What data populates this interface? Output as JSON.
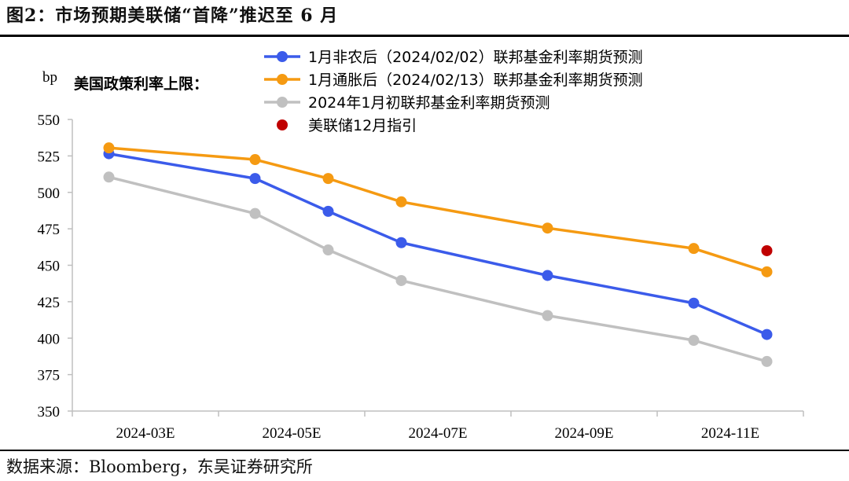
{
  "figure": {
    "title": "图2：市场预期美联储“首降”推迟至 6 月",
    "source": "数据来源：Bloomberg，东吴证券研究所"
  },
  "chart_data": {
    "type": "line",
    "ylabel": "bp",
    "annotation": "美国政策利率上限：",
    "ylim": [
      350,
      550
    ],
    "yticks": [
      350,
      375,
      400,
      425,
      450,
      475,
      500,
      525,
      550
    ],
    "x_tick_labels": [
      "2024-03E",
      "2024-05E",
      "2024-07E",
      "2024-09E",
      "2024-11E"
    ],
    "x": [
      "2024-03E",
      "2024-05E",
      "2024-06E",
      "2024-07E",
      "2024-09E",
      "2024-11E",
      "2024-12E"
    ],
    "legend_position": "top",
    "series": [
      {
        "name": "1月非农后（2024/02/02）联邦基金利率期货预测",
        "color": "#3b5bea",
        "values": [
          526.5,
          509.5,
          487,
          465.5,
          443,
          424,
          402.5
        ]
      },
      {
        "name": "1月通胀后（2024/02/13）联邦基金利率期货预测",
        "color": "#f59a12",
        "values": [
          530.5,
          522.5,
          509.5,
          493.5,
          475.5,
          461.5,
          445.5
        ]
      },
      {
        "name": "2024年1月初联邦基金利率期货预测",
        "color": "#c0c0c0",
        "values": [
          510.5,
          485.5,
          460.5,
          439.5,
          415.5,
          398.5,
          384
        ]
      }
    ],
    "points": [
      {
        "name": "美联储12月指引",
        "color": "#c00000",
        "x": "2024-12E",
        "value": 460
      }
    ]
  }
}
